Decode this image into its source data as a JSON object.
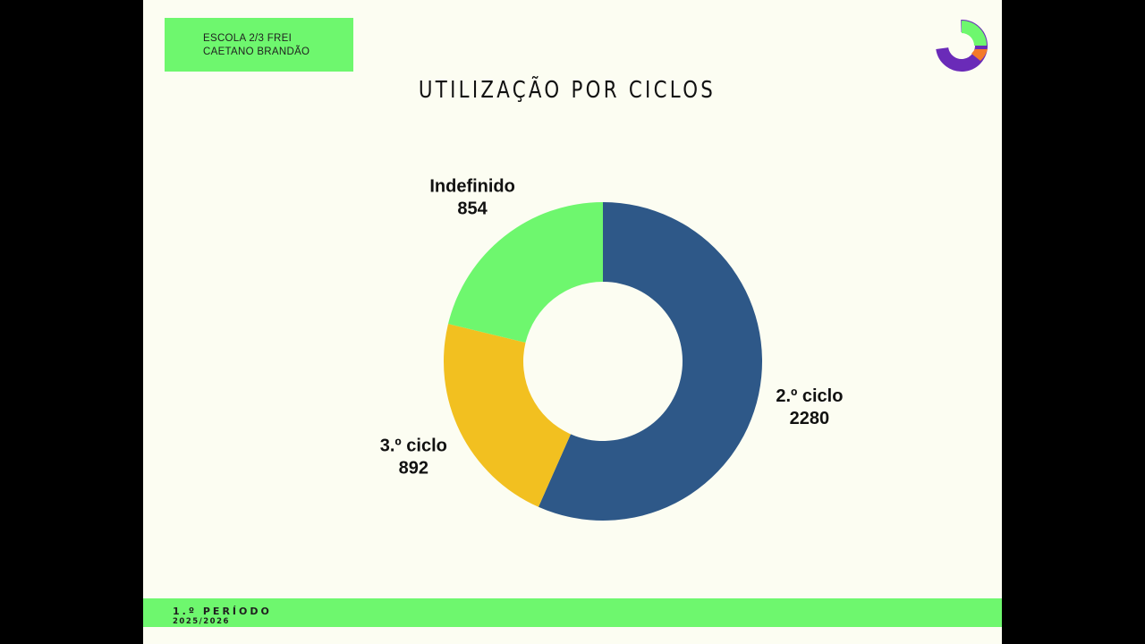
{
  "header": {
    "school_line1": "ESCOLA 2/3 FREI",
    "school_line2": "CAETANO BRANDÃO"
  },
  "logo": {
    "icon": "pie-chart-logo-icon"
  },
  "chart_data": {
    "type": "pie",
    "title": "UTILIZAÇÃO POR CICLOS",
    "donut": true,
    "labels": [
      "2.º ciclo",
      "3.º ciclo",
      "Indefinido"
    ],
    "values": [
      2280,
      892,
      854
    ],
    "colors": [
      "#2e5888",
      "#f2c020",
      "#6ef76e"
    ]
  },
  "footer": {
    "period": "1.º PERÍODO",
    "year": "2025/2026"
  },
  "colors": {
    "background": "#fcfdf2",
    "accent": "#6ef76e"
  }
}
